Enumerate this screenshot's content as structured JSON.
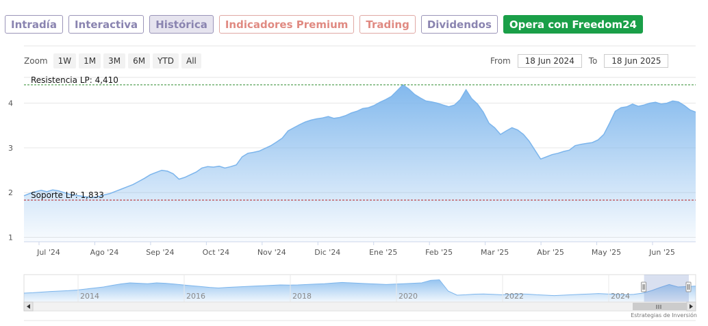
{
  "tabs": [
    {
      "label": "Intradía",
      "style": "normal"
    },
    {
      "label": "Interactiva",
      "style": "normal"
    },
    {
      "label": "Histórica",
      "style": "active"
    },
    {
      "label": "Indicadores Premium",
      "style": "premium"
    },
    {
      "label": "Trading",
      "style": "premium"
    },
    {
      "label": "Dividendos",
      "style": "normal"
    },
    {
      "label": "Opera con Freedom24",
      "style": "freedom"
    }
  ],
  "toolbar": {
    "zoom_label": "Zoom",
    "zoom_buttons": [
      "1W",
      "1M",
      "3M",
      "6M",
      "YTD",
      "All"
    ],
    "from_label": "From",
    "from_value": "18 Jun 2024",
    "to_label": "To",
    "to_value": "18 Jun 2025"
  },
  "credit": "Estrategias de Inversión",
  "colors": {
    "line": "#7cb5ec",
    "resistance": "#2f8a2f",
    "support": "#b51f1f",
    "grid": "#e6e6e6"
  },
  "chart_data": {
    "type": "area",
    "ylim": [
      0.9,
      4.5
    ],
    "yticks": [
      1,
      2,
      3,
      4
    ],
    "x_labels": [
      "Jul '24",
      "Ago '24",
      "Sep '24",
      "Oct '24",
      "Nov '24",
      "Dic '24",
      "Ene '25",
      "Feb '25",
      "Mar '25",
      "Abr '25",
      "May '25",
      "Jun '25"
    ],
    "series": [
      {
        "values": [
          1.93,
          1.98,
          2.02,
          2.05,
          2.02,
          2.06,
          2.04,
          2.0,
          1.96,
          1.94,
          1.92,
          1.9,
          1.89,
          1.91,
          1.95,
          1.98,
          2.03,
          2.08,
          2.13,
          2.18,
          2.25,
          2.32,
          2.4,
          2.45,
          2.5,
          2.48,
          2.42,
          2.3,
          2.34,
          2.4,
          2.46,
          2.55,
          2.58,
          2.57,
          2.59,
          2.55,
          2.58,
          2.62,
          2.8,
          2.88,
          2.9,
          2.93,
          2.99,
          3.05,
          3.13,
          3.22,
          3.38,
          3.45,
          3.52,
          3.58,
          3.62,
          3.65,
          3.67,
          3.7,
          3.66,
          3.68,
          3.72,
          3.78,
          3.82,
          3.88,
          3.9,
          3.95,
          4.02,
          4.08,
          4.15,
          4.28,
          4.41,
          4.32,
          4.2,
          4.12,
          4.05,
          4.03,
          4.0,
          3.96,
          3.92,
          3.96,
          4.08,
          4.3,
          4.1,
          3.98,
          3.8,
          3.55,
          3.45,
          3.3,
          3.38,
          3.45,
          3.4,
          3.3,
          3.15,
          2.95,
          2.75,
          2.8,
          2.85,
          2.88,
          2.92,
          2.95,
          3.05,
          3.08,
          3.1,
          3.12,
          3.18,
          3.3,
          3.55,
          3.82,
          3.9,
          3.92,
          3.98,
          3.93,
          3.96,
          4.0,
          4.02,
          3.98,
          4.0,
          4.05,
          4.03,
          3.95,
          3.85,
          3.8
        ]
      }
    ],
    "annotations": [
      {
        "label": "Resistencia LP: 4,410",
        "value": 4.41,
        "kind": "resistance"
      },
      {
        "label": "Soporte LP: 1,833",
        "value": 1.833,
        "kind": "support"
      }
    ],
    "navigator": {
      "year_labels": [
        "2014",
        "2016",
        "2018",
        "2020",
        "2022",
        "2024"
      ],
      "values": [
        0.3,
        0.32,
        0.35,
        0.38,
        0.4,
        0.42,
        0.45,
        0.5,
        0.55,
        0.6,
        0.68,
        0.75,
        0.8,
        0.78,
        0.76,
        0.8,
        0.78,
        0.74,
        0.7,
        0.66,
        0.62,
        0.58,
        0.55,
        0.58,
        0.6,
        0.62,
        0.64,
        0.66,
        0.68,
        0.7,
        0.69,
        0.7,
        0.72,
        0.74,
        0.76,
        0.79,
        0.82,
        0.8,
        0.78,
        0.76,
        0.74,
        0.72,
        0.74,
        0.76,
        0.78,
        0.8,
        0.92,
        0.95,
        0.4,
        0.2,
        0.22,
        0.25,
        0.26,
        0.24,
        0.22,
        0.24,
        0.26,
        0.25,
        0.22,
        0.2,
        0.18,
        0.2,
        0.22,
        0.24,
        0.26,
        0.28,
        0.26,
        0.24,
        0.22,
        0.24,
        0.3,
        0.42,
        0.58,
        0.72,
        0.6,
        0.62,
        0.64
      ],
      "selected_fraction": [
        0.915,
        1.0
      ]
    }
  }
}
